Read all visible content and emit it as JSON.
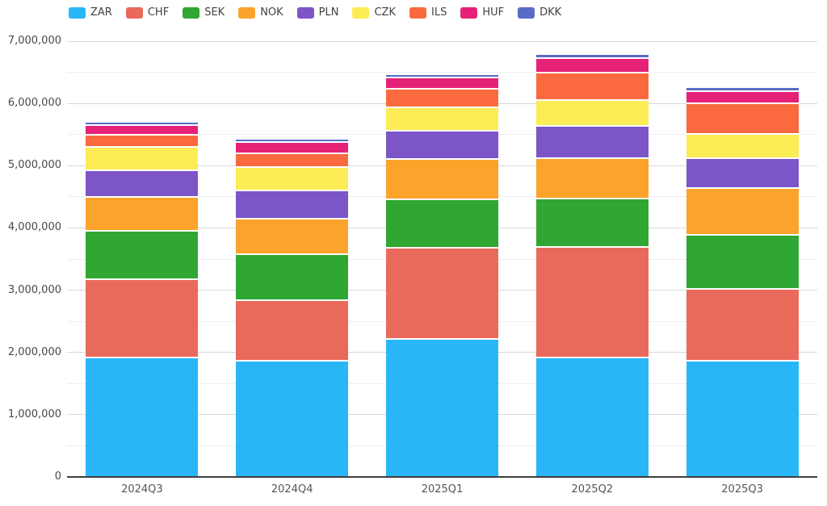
{
  "chart_data": {
    "type": "bar",
    "stacked": true,
    "title": "",
    "xlabel": "",
    "ylabel": "",
    "categories": [
      "2024Q3",
      "2024Q4",
      "2025Q1",
      "2025Q2",
      "2025Q3"
    ],
    "series": [
      {
        "name": "ZAR",
        "color": "#29b6f6",
        "values": [
          1900000,
          1850000,
          2210000,
          1900000,
          1850000
        ]
      },
      {
        "name": "CHF",
        "color": "#e96a5b",
        "values": [
          1260000,
          980000,
          1455000,
          1780000,
          1160000
        ]
      },
      {
        "name": "SEK",
        "color": "#2fa732",
        "values": [
          780000,
          735000,
          785000,
          775000,
          865000
        ]
      },
      {
        "name": "NOK",
        "color": "#fba32b",
        "values": [
          540000,
          570000,
          640000,
          655000,
          755000
        ]
      },
      {
        "name": "PLN",
        "color": "#7c55c7",
        "values": [
          430000,
          455000,
          460000,
          520000,
          475000
        ]
      },
      {
        "name": "CZK",
        "color": "#fcec55",
        "values": [
          380000,
          370000,
          370000,
          410000,
          390000
        ]
      },
      {
        "name": "ILS",
        "color": "#fa6a3e",
        "values": [
          195000,
          230000,
          305000,
          445000,
          495000
        ]
      },
      {
        "name": "HUF",
        "color": "#e52277",
        "values": [
          150000,
          180000,
          175000,
          230000,
          200000
        ]
      },
      {
        "name": "DKK",
        "color": "#5a6bc5",
        "values": [
          52000,
          52000,
          58000,
          65000,
          58000
        ]
      }
    ],
    "ylim": [
      0,
      7000000
    ],
    "ytick_step": 1000000,
    "minor_gridline_step": 500000,
    "yticklabels": [
      "0",
      "1,000,000",
      "2,000,000",
      "3,000,000",
      "4,000,000",
      "5,000,000",
      "6,000,000",
      "7,000,000"
    ],
    "legend_position": "top-left",
    "grid": true
  }
}
